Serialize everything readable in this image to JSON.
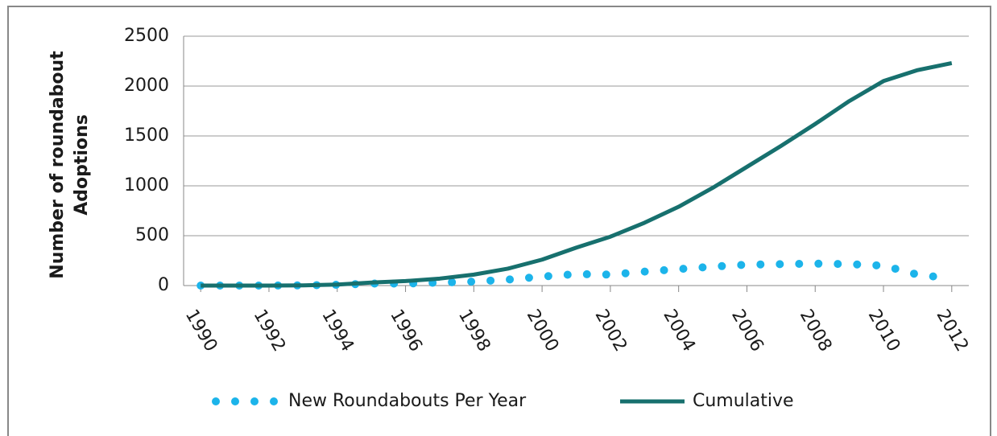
{
  "chart_data": {
    "type": "line",
    "ylabel": [
      "Number of roundabout",
      "Adoptions"
    ],
    "x": [
      1990,
      1991,
      1992,
      1993,
      1994,
      1995,
      1996,
      1997,
      1998,
      1999,
      2000,
      2001,
      2002,
      2003,
      2004,
      2005,
      2006,
      2007,
      2008,
      2009,
      2010,
      2011,
      2012
    ],
    "series": [
      {
        "name": "New Roundabouts Per Year",
        "color": "#1cb4ea",
        "style": "dotted",
        "values": [
          0,
          0,
          0,
          2,
          8,
          20,
          20,
          30,
          40,
          60,
          90,
          115,
          110,
          140,
          165,
          190,
          210,
          215,
          220,
          215,
          200,
          110,
          70
        ]
      },
      {
        "name": "Cumulative",
        "color": "#17706e",
        "style": "solid",
        "values": [
          0,
          0,
          0,
          2,
          10,
          30,
          45,
          70,
          110,
          170,
          260,
          380,
          490,
          630,
          790,
          980,
          1190,
          1400,
          1620,
          1850,
          2050,
          2160,
          2230
        ]
      }
    ],
    "xlim": [
      1989.5,
      2012.5
    ],
    "xticks": [
      1990,
      1992,
      1994,
      1996,
      1998,
      2000,
      2002,
      2004,
      2006,
      2008,
      2010,
      2012
    ],
    "ylim": [
      0,
      2500
    ],
    "yticks": [
      0,
      500,
      1000,
      1500,
      2000,
      2500
    ],
    "grid": true,
    "legend": "bottom"
  }
}
